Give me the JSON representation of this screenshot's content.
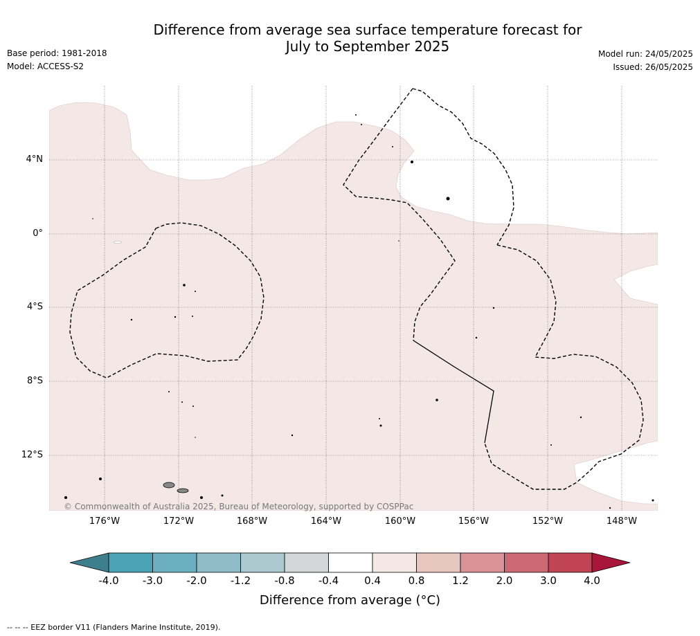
{
  "header": {
    "title_line1": "Difference from average sea surface temperature forecast for",
    "title_line2": "July to September 2025",
    "base_period": "Base period: 1981-2018",
    "model": "Model: ACCESS-S2",
    "model_run": "Model run: 24/05/2025",
    "issued": "Issued: 26/05/2025"
  },
  "map": {
    "lat_labels": [
      "4°N",
      "0°",
      "4°S",
      "8°S",
      "12°S"
    ],
    "lon_labels": [
      "176°W",
      "172°W",
      "168°W",
      "164°W",
      "160°W",
      "156°W",
      "152°W",
      "148°W"
    ],
    "copyright": "© Commonwealth of Australia 2025, Bureau of Meteorology, supported by COSPPac",
    "colors": {
      "anomaly_0_4_to_0_8": "#f4e8e7",
      "near_average": "#ffffff",
      "eez_border": "#000000",
      "land": "#808080"
    }
  },
  "colorbar": {
    "ticks": [
      "-4.0",
      "-3.0",
      "-2.0",
      "-1.2",
      "-0.8",
      "-0.4",
      "0.4",
      "0.8",
      "1.2",
      "2.0",
      "3.0",
      "4.0"
    ],
    "colors": [
      "#3d7f8c",
      "#4aa3b4",
      "#6cb0bf",
      "#8fbcc7",
      "#abc8ce",
      "#d3d6d6",
      "#ffffff",
      "#f4e8e7",
      "#e8c6c0",
      "#d99297",
      "#cb6a74",
      "#c04454",
      "#a8173a"
    ],
    "label": "Difference from average (°C)"
  },
  "footnote": "--  --  -- EEZ border V11 (Flanders Marine Institute, 2019)."
}
